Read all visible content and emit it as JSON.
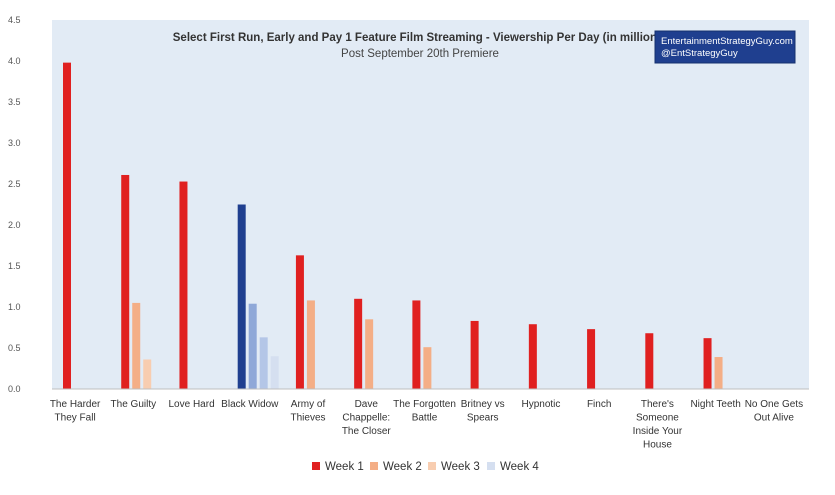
{
  "chart_data": {
    "type": "bar",
    "title": "Select First Run, Early and Pay 1 Feature Film Streaming - Viewership Per Day (in millions)",
    "subtitle": "Post September 20th Premiere",
    "watermark": [
      "EntertainmentStrategyGuy.com",
      "@EntStrategyGuy"
    ],
    "categories": [
      [
        "The Harder",
        "They Fall"
      ],
      [
        "The Guilty"
      ],
      [
        "Love Hard"
      ],
      [
        "Black Widow"
      ],
      [
        "Army of",
        "Thieves"
      ],
      [
        "Dave",
        "Chappelle:",
        "The Closer"
      ],
      [
        "The Forgotten",
        "Battle"
      ],
      [
        "Britney vs",
        "Spears"
      ],
      [
        "Hypnotic"
      ],
      [
        "Finch"
      ],
      [
        "There's",
        "Someone",
        "Inside Your",
        "House"
      ],
      [
        "Night Teeth"
      ],
      [
        "No One Gets",
        "Out Alive"
      ]
    ],
    "series": [
      {
        "name": "Week 1",
        "color": "#e02020",
        "values": [
          3.98,
          2.61,
          2.53,
          null,
          1.63,
          1.1,
          1.08,
          0.83,
          0.79,
          0.73,
          0.68,
          0.62,
          null
        ]
      },
      {
        "name": "Week 2",
        "color": "#f4ae86",
        "values": [
          null,
          1.05,
          null,
          null,
          1.08,
          0.85,
          0.51,
          null,
          null,
          null,
          null,
          0.39,
          null
        ]
      },
      {
        "name": "Week 3",
        "color": "#f8cdb0",
        "values": [
          null,
          0.36,
          null,
          null,
          null,
          null,
          null,
          null,
          null,
          null,
          null,
          null,
          null
        ]
      },
      {
        "name": "Week 4",
        "color": "#d5dff0",
        "values": [
          null,
          null,
          null,
          null,
          null,
          null,
          null,
          null,
          null,
          null,
          null,
          null,
          null
        ]
      }
    ],
    "special_bars": [
      {
        "category_index": 3,
        "week_index": 0,
        "value": 2.25,
        "color": "#1f3f8f"
      },
      {
        "category_index": 3,
        "week_index": 1,
        "value": 1.04,
        "color": "#8fa8d8"
      },
      {
        "category_index": 3,
        "week_index": 2,
        "value": 0.63,
        "color": "#b4c6e7"
      },
      {
        "category_index": 3,
        "week_index": 3,
        "value": 0.4,
        "color": "#d5dff0"
      }
    ],
    "yticks": [
      "0.0",
      "0.5",
      "1.0",
      "1.5",
      "2.0",
      "2.5",
      "3.0",
      "3.5",
      "4.0",
      "4.5"
    ],
    "ylim": [
      0,
      4.5
    ],
    "grid": false,
    "legend_position": "bottom",
    "plot_background": "#e2ebf5",
    "brand_box_color": "#1f3f8f"
  }
}
